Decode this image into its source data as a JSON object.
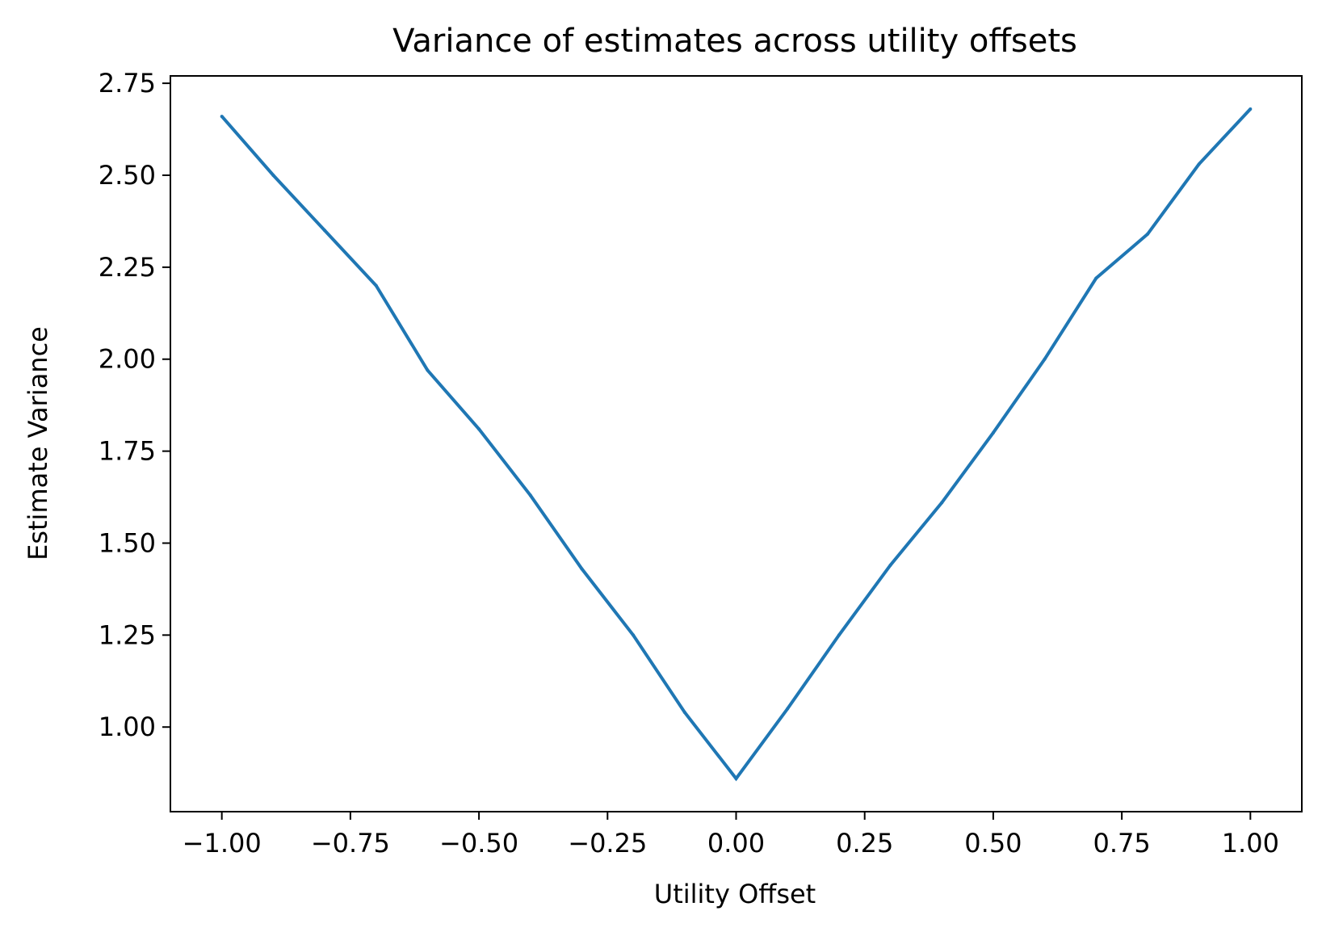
{
  "chart_data": {
    "type": "line",
    "title": "Variance of estimates across utility offsets",
    "xlabel": "Utility Offset",
    "ylabel": "Estimate Variance",
    "xlim": [
      -1.1,
      1.1
    ],
    "ylim": [
      0.77,
      2.77
    ],
    "x_ticks": [
      -1.0,
      -0.75,
      -0.5,
      -0.25,
      0.0,
      0.25,
      0.5,
      0.75,
      1.0
    ],
    "x_tick_labels": [
      "−1.00",
      "−0.75",
      "−0.50",
      "−0.25",
      "0.00",
      "0.25",
      "0.50",
      "0.75",
      "1.00"
    ],
    "y_ticks": [
      1.0,
      1.25,
      1.5,
      1.75,
      2.0,
      2.25,
      2.5,
      2.75
    ],
    "y_tick_labels": [
      "1.00",
      "1.25",
      "1.50",
      "1.75",
      "2.00",
      "2.25",
      "2.50",
      "2.75"
    ],
    "grid": false,
    "colors": {
      "line": "#1f77b4"
    },
    "series": [
      {
        "x": [
          -1.0,
          -0.9,
          -0.8,
          -0.7,
          -0.6,
          -0.5,
          -0.4,
          -0.3,
          -0.2,
          -0.1,
          0.0,
          0.1,
          0.2,
          0.3,
          0.4,
          0.5,
          0.6,
          0.7,
          0.8,
          0.9,
          1.0
        ],
        "values": [
          2.66,
          2.5,
          2.35,
          2.2,
          1.97,
          1.81,
          1.63,
          1.43,
          1.25,
          1.04,
          0.86,
          1.05,
          1.25,
          1.44,
          1.61,
          1.8,
          2.0,
          2.22,
          2.34,
          2.53,
          2.68
        ]
      }
    ]
  }
}
